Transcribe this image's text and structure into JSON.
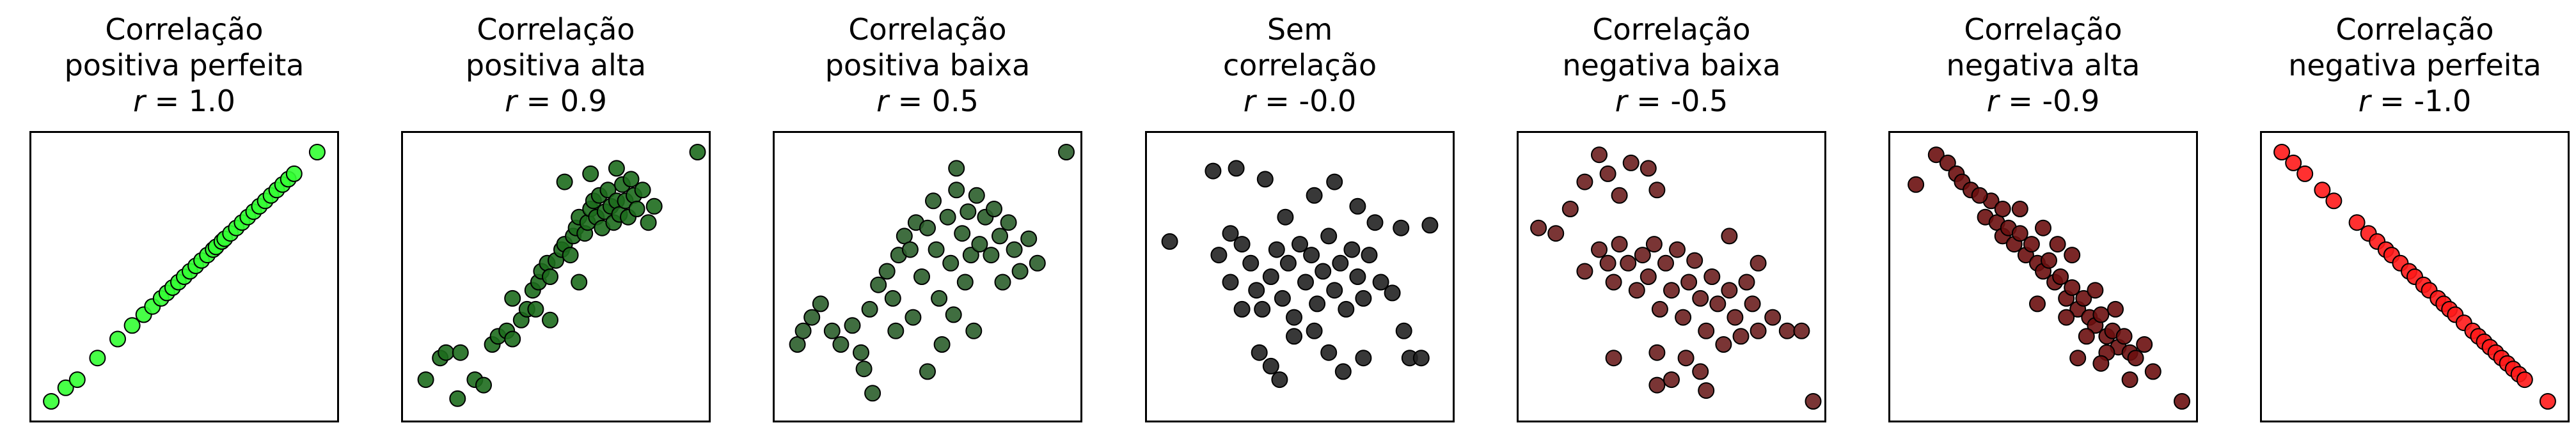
{
  "chart_data": [
    {
      "type": "scatter",
      "title_lines": [
        "Correlação",
        "positiva perfeita"
      ],
      "r_symbol": "r",
      "r_text": " = 1.0",
      "r": 1.0,
      "color": "#33ff33",
      "xlim": [
        0,
        1
      ],
      "ylim": [
        0,
        1
      ],
      "xticks": [],
      "yticks": [],
      "grid": false,
      "points": [
        [
          0.04,
          0.04
        ],
        [
          0.09,
          0.09
        ],
        [
          0.13,
          0.12
        ],
        [
          0.2,
          0.2
        ],
        [
          0.27,
          0.27
        ],
        [
          0.32,
          0.32
        ],
        [
          0.36,
          0.36
        ],
        [
          0.39,
          0.39
        ],
        [
          0.42,
          0.42
        ],
        [
          0.44,
          0.44
        ],
        [
          0.46,
          0.46
        ],
        [
          0.48,
          0.48
        ],
        [
          0.5,
          0.5
        ],
        [
          0.52,
          0.52
        ],
        [
          0.54,
          0.54
        ],
        [
          0.56,
          0.56
        ],
        [
          0.58,
          0.58
        ],
        [
          0.6,
          0.6
        ],
        [
          0.61,
          0.61
        ],
        [
          0.63,
          0.63
        ],
        [
          0.64,
          0.64
        ],
        [
          0.66,
          0.66
        ],
        [
          0.68,
          0.68
        ],
        [
          0.7,
          0.7
        ],
        [
          0.72,
          0.72
        ],
        [
          0.74,
          0.74
        ],
        [
          0.76,
          0.76
        ],
        [
          0.78,
          0.78
        ],
        [
          0.8,
          0.8
        ],
        [
          0.82,
          0.82
        ],
        [
          0.84,
          0.84
        ],
        [
          0.86,
          0.86
        ],
        [
          0.88,
          0.88
        ],
        [
          0.96,
          0.96
        ]
      ]
    },
    {
      "type": "scatter",
      "title_lines": [
        "Correlação",
        "positiva alta"
      ],
      "r_symbol": "r",
      "r_text": " = 0.9",
      "r": 0.9,
      "color": "#1d6b1d",
      "xlim": [
        0,
        1
      ],
      "ylim": [
        0,
        1
      ],
      "xticks": [],
      "yticks": [],
      "grid": false,
      "points": [
        [
          0.05,
          0.12
        ],
        [
          0.1,
          0.2
        ],
        [
          0.12,
          0.22
        ],
        [
          0.17,
          0.22
        ],
        [
          0.22,
          0.12
        ],
        [
          0.25,
          0.1
        ],
        [
          0.16,
          0.05
        ],
        [
          0.28,
          0.25
        ],
        [
          0.3,
          0.28
        ],
        [
          0.33,
          0.3
        ],
        [
          0.35,
          0.27
        ],
        [
          0.38,
          0.34
        ],
        [
          0.4,
          0.38
        ],
        [
          0.42,
          0.45
        ],
        [
          0.44,
          0.48
        ],
        [
          0.45,
          0.52
        ],
        [
          0.47,
          0.55
        ],
        [
          0.48,
          0.5
        ],
        [
          0.5,
          0.56
        ],
        [
          0.52,
          0.6
        ],
        [
          0.53,
          0.62
        ],
        [
          0.55,
          0.58
        ],
        [
          0.56,
          0.65
        ],
        [
          0.57,
          0.68
        ],
        [
          0.58,
          0.72
        ],
        [
          0.6,
          0.66
        ],
        [
          0.61,
          0.7
        ],
        [
          0.62,
          0.75
        ],
        [
          0.63,
          0.78
        ],
        [
          0.64,
          0.72
        ],
        [
          0.65,
          0.8
        ],
        [
          0.66,
          0.68
        ],
        [
          0.67,
          0.74
        ],
        [
          0.68,
          0.82
        ],
        [
          0.69,
          0.76
        ],
        [
          0.7,
          0.7
        ],
        [
          0.71,
          0.78
        ],
        [
          0.72,
          0.73
        ],
        [
          0.73,
          0.84
        ],
        [
          0.74,
          0.78
        ],
        [
          0.75,
          0.72
        ],
        [
          0.76,
          0.86
        ],
        [
          0.77,
          0.8
        ],
        [
          0.78,
          0.75
        ],
        [
          0.8,
          0.82
        ],
        [
          0.82,
          0.7
        ],
        [
          0.84,
          0.76
        ],
        [
          0.53,
          0.85
        ],
        [
          0.62,
          0.88
        ],
        [
          0.71,
          0.9
        ],
        [
          0.35,
          0.42
        ],
        [
          0.43,
          0.38
        ],
        [
          0.48,
          0.34
        ],
        [
          0.58,
          0.48
        ],
        [
          0.99,
          0.96
        ]
      ]
    },
    {
      "type": "scatter",
      "title_lines": [
        "Correlação",
        "positiva baixa"
      ],
      "r_symbol": "r",
      "r_text": " = 0.5",
      "r": 0.5,
      "color": "#2b5e2b",
      "xlim": [
        0,
        1
      ],
      "ylim": [
        0,
        1
      ],
      "xticks": [],
      "yticks": [],
      "grid": false,
      "points": [
        [
          0.05,
          0.25
        ],
        [
          0.07,
          0.3
        ],
        [
          0.1,
          0.35
        ],
        [
          0.13,
          0.4
        ],
        [
          0.17,
          0.3
        ],
        [
          0.2,
          0.25
        ],
        [
          0.24,
          0.32
        ],
        [
          0.27,
          0.22
        ],
        [
          0.3,
          0.38
        ],
        [
          0.33,
          0.47
        ],
        [
          0.36,
          0.52
        ],
        [
          0.38,
          0.42
        ],
        [
          0.39,
          0.3
        ],
        [
          0.4,
          0.58
        ],
        [
          0.42,
          0.65
        ],
        [
          0.44,
          0.6
        ],
        [
          0.45,
          0.35
        ],
        [
          0.46,
          0.7
        ],
        [
          0.48,
          0.5
        ],
        [
          0.5,
          0.68
        ],
        [
          0.52,
          0.78
        ],
        [
          0.53,
          0.6
        ],
        [
          0.54,
          0.42
        ],
        [
          0.55,
          0.25
        ],
        [
          0.57,
          0.72
        ],
        [
          0.58,
          0.55
        ],
        [
          0.59,
          0.36
        ],
        [
          0.6,
          0.82
        ],
        [
          0.62,
          0.66
        ],
        [
          0.63,
          0.48
        ],
        [
          0.64,
          0.74
        ],
        [
          0.65,
          0.58
        ],
        [
          0.66,
          0.3
        ],
        [
          0.67,
          0.8
        ],
        [
          0.68,
          0.62
        ],
        [
          0.7,
          0.72
        ],
        [
          0.72,
          0.58
        ],
        [
          0.73,
          0.75
        ],
        [
          0.75,
          0.65
        ],
        [
          0.76,
          0.48
        ],
        [
          0.78,
          0.7
        ],
        [
          0.8,
          0.6
        ],
        [
          0.82,
          0.52
        ],
        [
          0.85,
          0.64
        ],
        [
          0.88,
          0.55
        ],
        [
          0.31,
          0.07
        ],
        [
          0.5,
          0.15
        ],
        [
          0.28,
          0.16
        ],
        [
          0.6,
          0.9
        ],
        [
          0.98,
          0.96
        ]
      ]
    },
    {
      "type": "scatter",
      "title_lines": [
        "Sem",
        "correlação"
      ],
      "r_symbol": "r",
      "r_text": " = -0.0",
      "r": -0.0,
      "color": "#222222",
      "xlim": [
        0,
        1
      ],
      "ylim": [
        0,
        1
      ],
      "xticks": [],
      "yticks": [],
      "grid": false,
      "points": [
        [
          0.05,
          0.63
        ],
        [
          0.2,
          0.89
        ],
        [
          0.28,
          0.9
        ],
        [
          0.38,
          0.86
        ],
        [
          0.45,
          0.72
        ],
        [
          0.55,
          0.8
        ],
        [
          0.62,
          0.85
        ],
        [
          0.7,
          0.76
        ],
        [
          0.76,
          0.7
        ],
        [
          0.85,
          0.68
        ],
        [
          0.95,
          0.69
        ],
        [
          0.22,
          0.58
        ],
        [
          0.26,
          0.66
        ],
        [
          0.3,
          0.62
        ],
        [
          0.33,
          0.55
        ],
        [
          0.35,
          0.45
        ],
        [
          0.37,
          0.38
        ],
        [
          0.4,
          0.5
        ],
        [
          0.42,
          0.6
        ],
        [
          0.44,
          0.42
        ],
        [
          0.46,
          0.55
        ],
        [
          0.48,
          0.35
        ],
        [
          0.5,
          0.62
        ],
        [
          0.52,
          0.48
        ],
        [
          0.54,
          0.58
        ],
        [
          0.56,
          0.4
        ],
        [
          0.58,
          0.52
        ],
        [
          0.6,
          0.65
        ],
        [
          0.62,
          0.45
        ],
        [
          0.64,
          0.55
        ],
        [
          0.66,
          0.38
        ],
        [
          0.68,
          0.6
        ],
        [
          0.7,
          0.5
        ],
        [
          0.72,
          0.42
        ],
        [
          0.74,
          0.58
        ],
        [
          0.78,
          0.48
        ],
        [
          0.82,
          0.44
        ],
        [
          0.86,
          0.3
        ],
        [
          0.88,
          0.2
        ],
        [
          0.92,
          0.2
        ],
        [
          0.3,
          0.38
        ],
        [
          0.26,
          0.48
        ],
        [
          0.36,
          0.22
        ],
        [
          0.4,
          0.17
        ],
        [
          0.43,
          0.12
        ],
        [
          0.48,
          0.28
        ],
        [
          0.55,
          0.3
        ],
        [
          0.6,
          0.22
        ],
        [
          0.65,
          0.15
        ],
        [
          0.72,
          0.2
        ]
      ]
    },
    {
      "type": "scatter",
      "title_lines": [
        "Correlação",
        "negativa baixa"
      ],
      "r_symbol": "r",
      "r_text": " = -0.5",
      "r": -0.5,
      "color": "#6b1f1f",
      "xlim": [
        0,
        1
      ],
      "ylim": [
        0,
        1
      ],
      "xticks": [],
      "yticks": [],
      "grid": false,
      "points": [
        [
          0.04,
          0.68
        ],
        [
          0.1,
          0.66
        ],
        [
          0.15,
          0.75
        ],
        [
          0.2,
          0.85
        ],
        [
          0.25,
          0.95
        ],
        [
          0.28,
          0.88
        ],
        [
          0.32,
          0.8
        ],
        [
          0.36,
          0.92
        ],
        [
          0.42,
          0.9
        ],
        [
          0.45,
          0.82
        ],
        [
          0.2,
          0.52
        ],
        [
          0.25,
          0.6
        ],
        [
          0.28,
          0.55
        ],
        [
          0.3,
          0.48
        ],
        [
          0.32,
          0.62
        ],
        [
          0.35,
          0.55
        ],
        [
          0.38,
          0.45
        ],
        [
          0.4,
          0.58
        ],
        [
          0.42,
          0.5
        ],
        [
          0.44,
          0.62
        ],
        [
          0.46,
          0.38
        ],
        [
          0.48,
          0.55
        ],
        [
          0.5,
          0.45
        ],
        [
          0.52,
          0.6
        ],
        [
          0.54,
          0.35
        ],
        [
          0.56,
          0.48
        ],
        [
          0.58,
          0.56
        ],
        [
          0.6,
          0.42
        ],
        [
          0.62,
          0.3
        ],
        [
          0.64,
          0.5
        ],
        [
          0.66,
          0.4
        ],
        [
          0.68,
          0.25
        ],
        [
          0.7,
          0.45
        ],
        [
          0.72,
          0.35
        ],
        [
          0.74,
          0.28
        ],
        [
          0.76,
          0.48
        ],
        [
          0.78,
          0.4
        ],
        [
          0.8,
          0.3
        ],
        [
          0.85,
          0.35
        ],
        [
          0.9,
          0.3
        ],
        [
          0.95,
          0.3
        ],
        [
          0.3,
          0.2
        ],
        [
          0.45,
          0.22
        ],
        [
          0.55,
          0.2
        ],
        [
          0.6,
          0.15
        ],
        [
          0.45,
          0.1
        ],
        [
          0.5,
          0.12
        ],
        [
          0.62,
          0.08
        ],
        [
          0.99,
          0.04
        ],
        [
          0.7,
          0.65
        ],
        [
          0.8,
          0.55
        ]
      ]
    },
    {
      "type": "scatter",
      "title_lines": [
        "Correlação",
        "negativa alta"
      ],
      "r_symbol": "r",
      "r_text": " = -0.9",
      "r": -0.9,
      "color": "#6b0f0f",
      "xlim": [
        0,
        1
      ],
      "ylim": [
        0,
        1
      ],
      "xticks": [],
      "yticks": [],
      "grid": false,
      "points": [
        [
          0.06,
          0.84
        ],
        [
          0.13,
          0.95
        ],
        [
          0.17,
          0.92
        ],
        [
          0.2,
          0.88
        ],
        [
          0.22,
          0.85
        ],
        [
          0.25,
          0.82
        ],
        [
          0.3,
          0.72
        ],
        [
          0.32,
          0.78
        ],
        [
          0.34,
          0.7
        ],
        [
          0.36,
          0.65
        ],
        [
          0.38,
          0.68
        ],
        [
          0.4,
          0.62
        ],
        [
          0.42,
          0.66
        ],
        [
          0.44,
          0.58
        ],
        [
          0.46,
          0.62
        ],
        [
          0.48,
          0.55
        ],
        [
          0.5,
          0.52
        ],
        [
          0.52,
          0.56
        ],
        [
          0.54,
          0.48
        ],
        [
          0.56,
          0.5
        ],
        [
          0.58,
          0.42
        ],
        [
          0.6,
          0.46
        ],
        [
          0.62,
          0.38
        ],
        [
          0.64,
          0.42
        ],
        [
          0.66,
          0.35
        ],
        [
          0.68,
          0.32
        ],
        [
          0.7,
          0.36
        ],
        [
          0.72,
          0.28
        ],
        [
          0.74,
          0.3
        ],
        [
          0.76,
          0.24
        ],
        [
          0.78,
          0.28
        ],
        [
          0.8,
          0.22
        ],
        [
          0.82,
          0.2
        ],
        [
          0.85,
          0.25
        ],
        [
          0.88,
          0.15
        ],
        [
          0.42,
          0.75
        ],
        [
          0.5,
          0.68
        ],
        [
          0.55,
          0.62
        ],
        [
          0.6,
          0.58
        ],
        [
          0.68,
          0.45
        ],
        [
          0.75,
          0.38
        ],
        [
          0.48,
          0.4
        ],
        [
          0.58,
          0.35
        ],
        [
          0.65,
          0.28
        ],
        [
          0.72,
          0.22
        ],
        [
          0.62,
          0.2
        ],
        [
          0.7,
          0.18
        ],
        [
          0.8,
          0.12
        ],
        [
          0.98,
          0.04
        ],
        [
          0.28,
          0.8
        ],
        [
          0.36,
          0.75
        ]
      ]
    },
    {
      "type": "scatter",
      "title_lines": [
        "Correlação",
        "negativa perfeita"
      ],
      "r_symbol": "r",
      "r_text": " = -1.0",
      "r": -1.0,
      "color": "#ff1a1a",
      "xlim": [
        0,
        1
      ],
      "ylim": [
        0,
        1
      ],
      "xticks": [],
      "yticks": [],
      "grid": false,
      "points": [
        [
          0.04,
          0.96
        ],
        [
          0.08,
          0.92
        ],
        [
          0.12,
          0.88
        ],
        [
          0.18,
          0.82
        ],
        [
          0.22,
          0.78
        ],
        [
          0.3,
          0.7
        ],
        [
          0.34,
          0.66
        ],
        [
          0.37,
          0.63
        ],
        [
          0.4,
          0.6
        ],
        [
          0.42,
          0.58
        ],
        [
          0.45,
          0.55
        ],
        [
          0.48,
          0.52
        ],
        [
          0.5,
          0.5
        ],
        [
          0.53,
          0.47
        ],
        [
          0.55,
          0.45
        ],
        [
          0.58,
          0.42
        ],
        [
          0.6,
          0.4
        ],
        [
          0.62,
          0.38
        ],
        [
          0.64,
          0.36
        ],
        [
          0.67,
          0.33
        ],
        [
          0.7,
          0.3
        ],
        [
          0.72,
          0.28
        ],
        [
          0.74,
          0.26
        ],
        [
          0.76,
          0.24
        ],
        [
          0.78,
          0.22
        ],
        [
          0.8,
          0.2
        ],
        [
          0.82,
          0.18
        ],
        [
          0.84,
          0.16
        ],
        [
          0.86,
          0.14
        ],
        [
          0.88,
          0.12
        ],
        [
          0.96,
          0.04
        ]
      ]
    }
  ]
}
